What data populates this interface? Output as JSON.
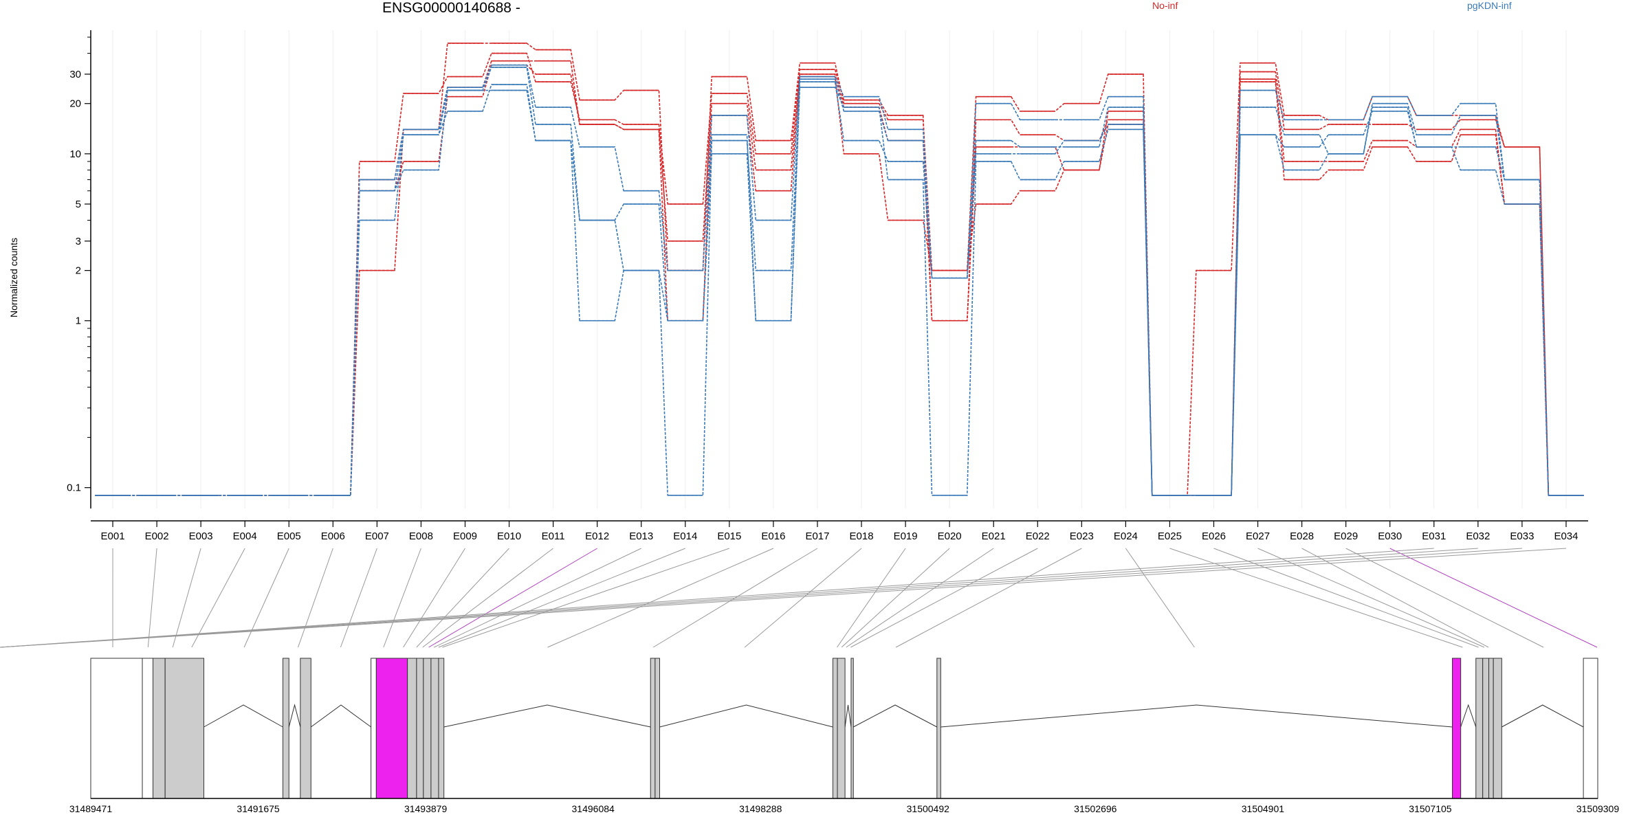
{
  "chart_data": {
    "type": "line",
    "title": "ENSG00000140688 -",
    "ylabel": "Normalized counts",
    "y_scale": "log",
    "ylim": [
      0.075,
      55
    ],
    "y_ticks": [
      0.1,
      1,
      2,
      3,
      5,
      10,
      20,
      30
    ],
    "y_tick_labels": [
      "0.1",
      "1",
      "2",
      "3",
      "5",
      "10",
      "20",
      "30"
    ],
    "grid": "vertical",
    "legend": [
      {
        "name": "No-inf",
        "color": "#d62728",
        "placement": "top"
      },
      {
        "name": "pgKDN-inf",
        "color": "#3a7ab8",
        "placement": "top-right"
      }
    ],
    "categories": [
      "E001",
      "E002",
      "E003",
      "E004",
      "E005",
      "E006",
      "E007",
      "E008",
      "E009",
      "E010",
      "E011",
      "E012",
      "E013",
      "E014",
      "E015",
      "E016",
      "E017",
      "E018",
      "E019",
      "E020",
      "E021",
      "E022",
      "E023",
      "E024",
      "E025",
      "E026",
      "E027",
      "E028",
      "E029",
      "E030",
      "E031",
      "E032",
      "E033",
      "E034"
    ],
    "highlighted_categories": [
      "E012",
      "E030"
    ],
    "series": [
      {
        "group": "No-inf",
        "color": "#d62728",
        "values": [
          0.09,
          0.09,
          0.09,
          0.09,
          0.09,
          0.09,
          2,
          14,
          46,
          46,
          42,
          21,
          24,
          2,
          29,
          12,
          35,
          20,
          16,
          2,
          22,
          18,
          20,
          30,
          0.09,
          2,
          35,
          17,
          16,
          22,
          17,
          17,
          11,
          0.09
        ]
      },
      {
        "group": "No-inf",
        "color": "#d62728",
        "values": [
          0.09,
          0.09,
          0.09,
          0.09,
          0.09,
          0.09,
          9,
          23,
          29,
          40,
          27,
          16,
          15,
          5,
          23,
          10,
          32,
          21,
          17,
          1,
          16,
          13,
          12,
          16,
          0.09,
          0.09,
          31,
          14,
          15,
          15,
          14,
          16,
          11,
          0.09
        ]
      },
      {
        "group": "No-inf",
        "color": "#d62728",
        "values": [
          0.09,
          0.09,
          0.09,
          0.09,
          0.09,
          0.09,
          7,
          14,
          25,
          36,
          36,
          15,
          14,
          3,
          20,
          8,
          30,
          19,
          12,
          1,
          11,
          11,
          8,
          18,
          0.09,
          0.09,
          28,
          9,
          9,
          12,
          11,
          14,
          5,
          0.09
        ]
      },
      {
        "group": "No-inf",
        "color": "#d62728",
        "values": [
          0.09,
          0.09,
          0.09,
          0.09,
          0.09,
          0.09,
          6,
          9,
          22,
          34,
          30,
          15,
          14,
          1,
          17,
          6,
          29,
          10,
          4,
          2,
          5,
          6,
          8,
          15,
          0.09,
          0.09,
          27,
          7,
          8,
          11,
          9,
          13,
          5,
          0.09
        ]
      },
      {
        "group": "pgKDN-inf",
        "color": "#3a7ab8",
        "values": [
          0.09,
          0.09,
          0.09,
          0.09,
          0.09,
          0.09,
          7,
          14,
          25,
          34,
          19,
          11,
          6,
          2,
          17,
          4,
          29,
          22,
          14,
          1.8,
          20,
          16,
          16,
          22,
          0.09,
          0.09,
          24,
          16,
          16,
          22,
          17,
          20,
          7,
          0.09
        ]
      },
      {
        "group": "pgKDN-inf",
        "color": "#3a7ab8",
        "values": [
          0.09,
          0.09,
          0.09,
          0.09,
          0.09,
          0.09,
          6,
          13,
          24,
          33,
          15,
          4,
          5,
          1,
          13,
          1,
          28,
          18,
          12,
          1.8,
          12,
          11,
          11,
          19,
          0.09,
          0.09,
          19,
          13,
          10,
          20,
          13,
          17,
          7,
          0.09
        ]
      },
      {
        "group": "pgKDN-inf",
        "color": "#3a7ab8",
        "values": [
          0.09,
          0.09,
          0.09,
          0.09,
          0.09,
          0.09,
          4,
          13,
          18,
          26,
          12,
          4,
          2,
          0.09,
          12,
          2,
          27,
          12,
          9,
          1.8,
          10,
          10,
          12,
          15,
          0.09,
          0.09,
          13,
          11,
          13,
          18,
          11,
          11,
          7,
          0.09
        ]
      },
      {
        "group": "pgKDN-inf",
        "color": "#3a7ab8",
        "values": [
          0.09,
          0.09,
          0.09,
          0.09,
          0.09,
          0.09,
          6,
          8,
          24,
          24,
          12,
          1,
          2,
          1,
          10,
          1,
          25,
          19,
          7,
          0.09,
          9,
          7,
          9,
          14,
          0.09,
          0.09,
          13,
          8,
          10,
          19,
          11,
          8,
          5,
          0.09
        ]
      }
    ],
    "genomic_axis": {
      "tick_labels": [
        "31489471",
        "31491675",
        "31493879",
        "31496084",
        "31498288",
        "31500492",
        "31502696",
        "31504901",
        "31507105",
        "31509309"
      ],
      "start": 31489471,
      "end": 31509309
    },
    "exon_bins": [
      {
        "start": 31489471,
        "end": 31490150,
        "fill": "white"
      },
      {
        "start": 31490150,
        "end": 31490290,
        "fill": "white"
      },
      {
        "start": 31490290,
        "end": 31490450,
        "fill": "#cccccc"
      },
      {
        "start": 31490450,
        "end": 31490960,
        "fill": "#cccccc"
      },
      {
        "start": 31492000,
        "end": 31492080,
        "fill": "#cccccc"
      },
      {
        "start": 31492230,
        "end": 31492370,
        "fill": "#cccccc"
      },
      {
        "start": 31493160,
        "end": 31493230,
        "fill": "white"
      },
      {
        "start": 31493230,
        "end": 31493640,
        "fill": "#ee22ee"
      },
      {
        "start": 31493640,
        "end": 31493760,
        "fill": "#cccccc"
      },
      {
        "start": 31493760,
        "end": 31493850,
        "fill": "#cccccc"
      },
      {
        "start": 31493850,
        "end": 31493950,
        "fill": "#cccccc"
      },
      {
        "start": 31493950,
        "end": 31494050,
        "fill": "#cccccc"
      },
      {
        "start": 31494050,
        "end": 31494120,
        "fill": "#cccccc"
      },
      {
        "start": 31496840,
        "end": 31496900,
        "fill": "#cccccc"
      },
      {
        "start": 31496900,
        "end": 31496960,
        "fill": "#cccccc"
      },
      {
        "start": 31499240,
        "end": 31499300,
        "fill": "#cccccc"
      },
      {
        "start": 31499300,
        "end": 31499400,
        "fill": "#cccccc"
      },
      {
        "start": 31499480,
        "end": 31499510,
        "fill": "#cccccc"
      },
      {
        "start": 31500610,
        "end": 31500660,
        "fill": "#cccccc"
      },
      {
        "start": 31507395,
        "end": 31507505,
        "fill": "#ee22ee"
      },
      {
        "start": 31507705,
        "end": 31507795,
        "fill": "#cccccc"
      },
      {
        "start": 31507795,
        "end": 31507875,
        "fill": "#cccccc"
      },
      {
        "start": 31507875,
        "end": 31507935,
        "fill": "#cccccc"
      },
      {
        "start": 31507935,
        "end": 31508045,
        "fill": "#cccccc"
      },
      {
        "start": 31509120,
        "end": 31509309,
        "fill": "white"
      }
    ],
    "introns": [
      [
        31490960,
        31492000
      ],
      [
        31492080,
        31492230
      ],
      [
        31492370,
        31493160
      ],
      [
        31494120,
        31496840
      ],
      [
        31496960,
        31499240
      ],
      [
        31499400,
        31499480
      ],
      [
        31499510,
        31500610
      ],
      [
        31500660,
        31507395
      ],
      [
        31507505,
        31507705
      ],
      [
        31508045,
        31509120
      ]
    ],
    "bin_edges": [
      31489471,
      31490050,
      31490400,
      31490700,
      31490900,
      31492080,
      31492320,
      31493200,
      31493450,
      31493720,
      31493800,
      31493880,
      31493960,
      31494020,
      31494080,
      31494120,
      31496850,
      31496900,
      31499260,
      31499330,
      31499380,
      31499450,
      31499500,
      31500640,
      31507360,
      31507700,
      31507780,
      31507850,
      31507890,
      31509300
    ]
  }
}
